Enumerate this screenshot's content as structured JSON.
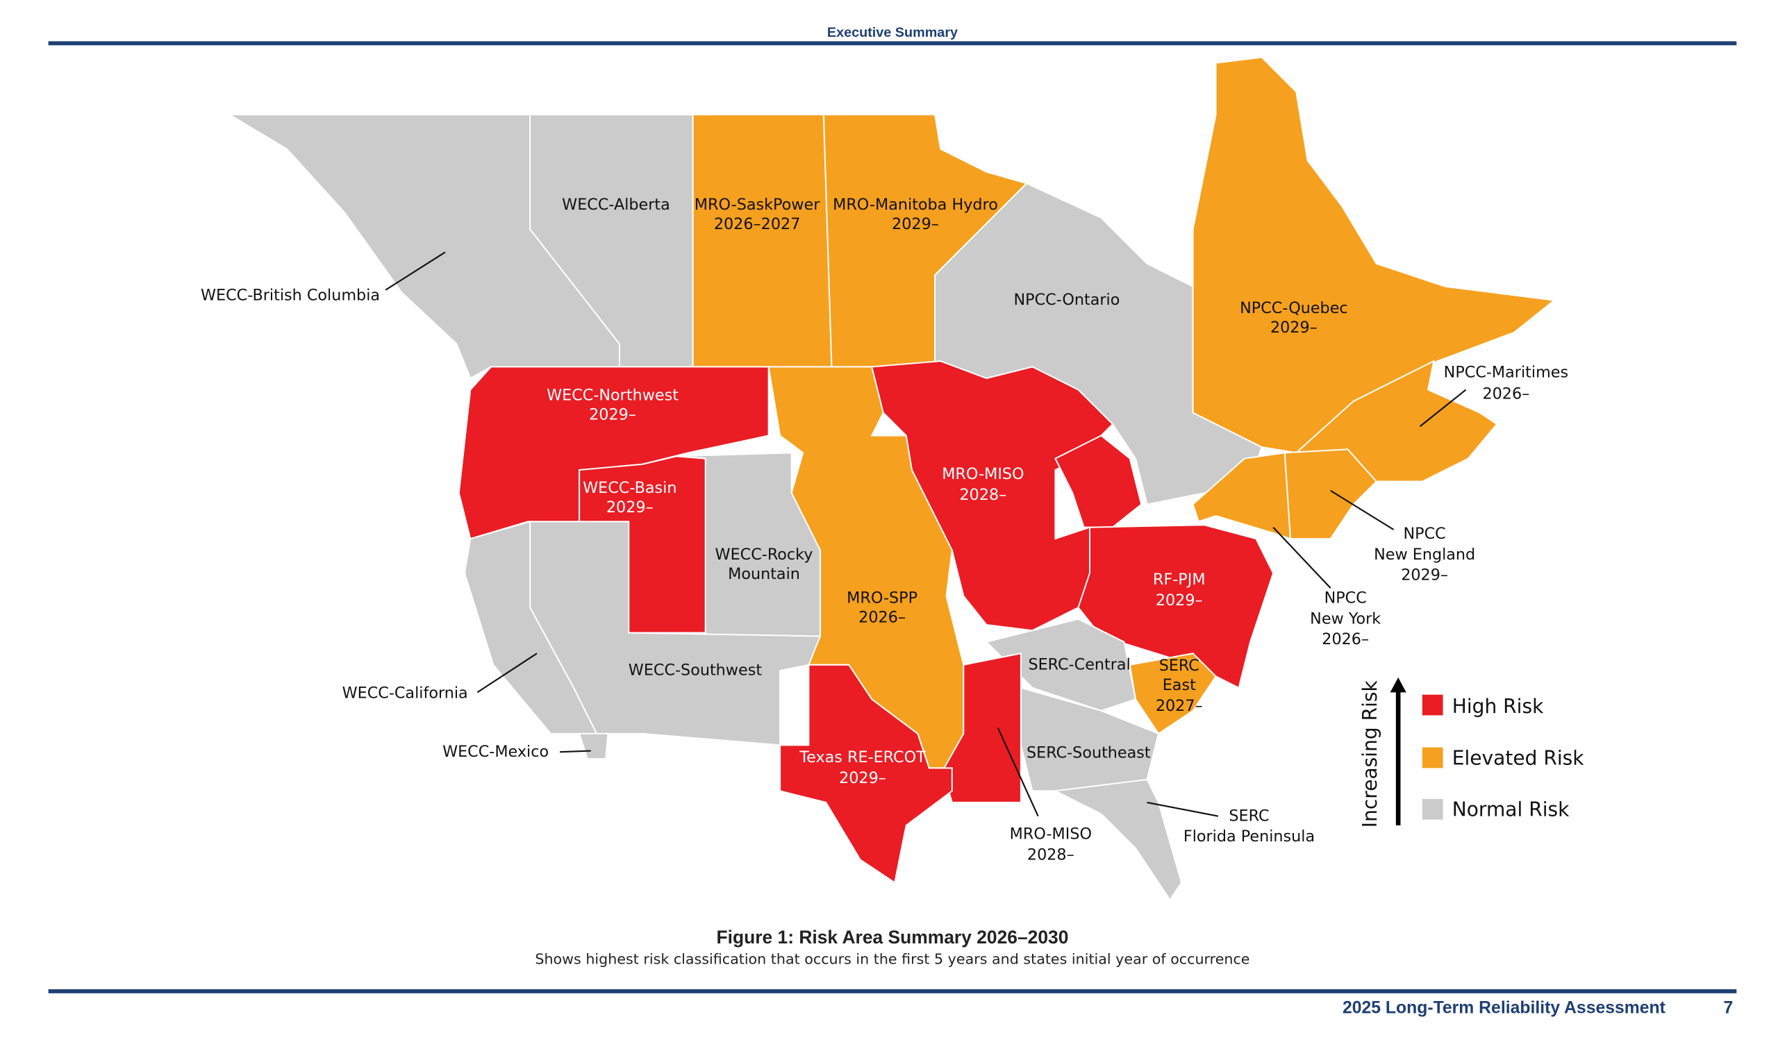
{
  "header": {
    "title": "Executive Summary"
  },
  "footer": {
    "title": "2025 Long-Term Reliability Assessment",
    "page": "7"
  },
  "figure": {
    "caption": "Figure 1: Risk Area Summary 2026–2030",
    "subcaption": "Shows highest risk classification that occurs in the first 5 years and states initial year of occurrence"
  },
  "colors": {
    "high": "#ea1c24",
    "elevated": "#f6a01f",
    "normal": "#cbcbcc",
    "accent": "#1f3f73"
  },
  "legend": {
    "axis_label": "Increasing Risk",
    "items": [
      {
        "label": "High Risk",
        "color": "#ea1c24"
      },
      {
        "label": "Elevated Risk",
        "color": "#f6a01f"
      },
      {
        "label": "Normal Risk",
        "color": "#cbcbcc"
      }
    ]
  },
  "regions": {
    "bc": {
      "name": "WECC-British Columbia",
      "risk": "normal"
    },
    "alberta": {
      "name": "WECC-Alberta",
      "risk": "normal"
    },
    "sask": {
      "name": "MRO-SaskPower",
      "year": "2026–2027",
      "risk": "elevated"
    },
    "manitoba": {
      "name": "MRO-Manitoba Hydro",
      "year": "2029–",
      "risk": "elevated"
    },
    "ontario": {
      "name": "NPCC-Ontario",
      "risk": "normal"
    },
    "quebec": {
      "name": "NPCC-Quebec",
      "year": "2029–",
      "risk": "elevated"
    },
    "maritimes": {
      "name": "NPCC-Maritimes",
      "year": "2026–",
      "risk": "elevated"
    },
    "newengland": {
      "name1": "NPCC",
      "name2": "New England",
      "year": "2029–",
      "risk": "elevated"
    },
    "newyork": {
      "name1": "NPCC",
      "name2": "New York",
      "year": "2026–",
      "risk": "elevated"
    },
    "northwest": {
      "name": "WECC-Northwest",
      "year": "2029–",
      "risk": "high"
    },
    "basin": {
      "name": "WECC-Basin",
      "year": "2029–",
      "risk": "high"
    },
    "rocky": {
      "name1": "WECC-Rocky",
      "name2": "Mountain",
      "risk": "normal"
    },
    "spp": {
      "name": "MRO-SPP",
      "year": "2026–",
      "risk": "elevated"
    },
    "miso": {
      "name": "MRO-MISO",
      "year": "2028–",
      "risk": "high"
    },
    "miso_south": {
      "name": "MRO-MISO",
      "year": "2028–",
      "risk": "high"
    },
    "pjm": {
      "name": "RF-PJM",
      "year": "2029–",
      "risk": "high"
    },
    "serc_central": {
      "name": "SERC-Central",
      "risk": "normal"
    },
    "serc_east": {
      "name1": "SERC",
      "name2": "East",
      "year": "2027–",
      "risk": "elevated"
    },
    "serc_southeast": {
      "name": "SERC-Southeast",
      "risk": "normal"
    },
    "florida": {
      "name1": "SERC",
      "name2": "Florida Peninsula",
      "risk": "normal"
    },
    "texas": {
      "name": "Texas RE-ERCOT",
      "year": "2029–",
      "risk": "high"
    },
    "southwest": {
      "name": "WECC-Southwest",
      "risk": "normal"
    },
    "california": {
      "name": "WECC-California",
      "risk": "normal"
    },
    "mexico": {
      "name": "WECC-Mexico",
      "risk": "normal"
    }
  }
}
